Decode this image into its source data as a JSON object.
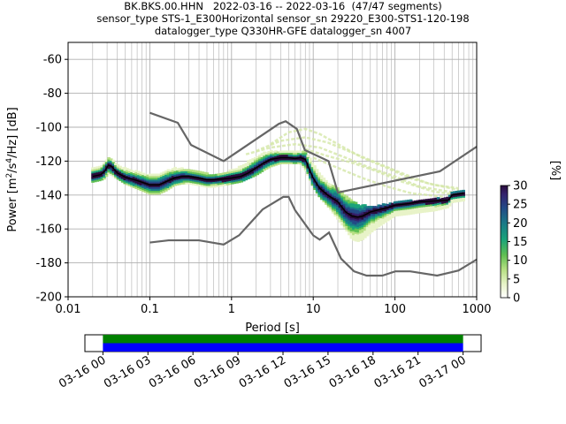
{
  "header": {
    "line1": "BK.BKS.00.HHN   2022-03-16 -- 2022-03-16  (47/47 segments)",
    "line2": "sensor_type STS-1_E300Horizontal sensor_sn 29220_E300-STS1-120-198",
    "line3": "datalogger_type Q330HR-GFE datalogger_sn 4007"
  },
  "chart_data": [
    {
      "type": "heatmap",
      "title": "BK.BKS.00.HHN   2022-03-16 -- 2022-03-16  (47/47 segments)",
      "xlabel": "Period [s]",
      "ylabel_parts": [
        "Power [",
        "m",
        "2",
        "/",
        "s",
        "4",
        "/Hz] [dB]"
      ],
      "x_scale": "log",
      "xlim": [
        0.01,
        1000
      ],
      "ylim": [
        -200,
        -50
      ],
      "x_ticks": [
        {
          "v": 0.01,
          "label": "0.01"
        },
        {
          "v": 0.1,
          "label": "0.1"
        },
        {
          "v": 1,
          "label": "1"
        },
        {
          "v": 10,
          "label": "10"
        },
        {
          "v": 100,
          "label": "100"
        },
        {
          "v": 1000,
          "label": "1000"
        }
      ],
      "y_ticks": [
        -60,
        -80,
        -100,
        -120,
        -140,
        -160,
        -180,
        -200
      ],
      "grid": true,
      "high_noise_model": [
        [
          0.1,
          -91.5
        ],
        [
          0.22,
          -97.4
        ],
        [
          0.32,
          -110.5
        ],
        [
          0.8,
          -120
        ],
        [
          3.8,
          -98
        ],
        [
          4.6,
          -96.5
        ],
        [
          6.3,
          -101
        ],
        [
          7.9,
          -113.5
        ],
        [
          15.4,
          -120
        ],
        [
          20,
          -138.5
        ],
        [
          354.8,
          -126
        ],
        [
          1000,
          -111.5
        ]
      ],
      "low_noise_model": [
        [
          0.1,
          -168
        ],
        [
          0.17,
          -166.7
        ],
        [
          0.4,
          -166.7
        ],
        [
          0.8,
          -169.2
        ],
        [
          1.24,
          -163.7
        ],
        [
          2.4,
          -148.5
        ],
        [
          4.3,
          -141.1
        ],
        [
          5,
          -141.1
        ],
        [
          6,
          -149
        ],
        [
          10,
          -163.8
        ],
        [
          12,
          -166.3
        ],
        [
          15.6,
          -162.1
        ],
        [
          21.9,
          -177.5
        ],
        [
          31.6,
          -185
        ],
        [
          45,
          -187.5
        ],
        [
          70,
          -187.5
        ],
        [
          101,
          -185
        ],
        [
          154,
          -185
        ],
        [
          328,
          -187.5
        ],
        [
          600,
          -184.5
        ],
        [
          1000,
          -178
        ]
      ],
      "mode_line": [
        [
          0.02,
          -129
        ],
        [
          0.025,
          -128
        ],
        [
          0.028,
          -126
        ],
        [
          0.031,
          -122.5
        ],
        [
          0.034,
          -123
        ],
        [
          0.04,
          -127
        ],
        [
          0.05,
          -129.5
        ],
        [
          0.07,
          -131.5
        ],
        [
          0.1,
          -134
        ],
        [
          0.13,
          -134
        ],
        [
          0.16,
          -132
        ],
        [
          0.2,
          -130
        ],
        [
          0.25,
          -129
        ],
        [
          0.3,
          -129
        ],
        [
          0.4,
          -130
        ],
        [
          0.5,
          -131
        ],
        [
          0.6,
          -131
        ],
        [
          0.8,
          -130.5
        ],
        [
          1,
          -130
        ],
        [
          1.3,
          -129
        ],
        [
          1.6,
          -127
        ],
        [
          2,
          -124
        ],
        [
          2.5,
          -121
        ],
        [
          3,
          -119
        ],
        [
          4,
          -118
        ],
        [
          5,
          -118
        ],
        [
          6,
          -118.5
        ],
        [
          7,
          -118
        ],
        [
          8,
          -119
        ],
        [
          9,
          -125
        ],
        [
          10,
          -130
        ],
        [
          12,
          -136
        ],
        [
          15,
          -140
        ],
        [
          20,
          -144
        ],
        [
          25,
          -150
        ],
        [
          30,
          -152.5
        ],
        [
          35,
          -153
        ],
        [
          40,
          -152.5
        ],
        [
          50,
          -150
        ],
        [
          60,
          -149
        ],
        [
          80,
          -147.5
        ],
        [
          100,
          -146
        ],
        [
          150,
          -145
        ],
        [
          200,
          -144
        ],
        [
          300,
          -143.5
        ],
        [
          450,
          -143
        ],
        [
          500,
          -140
        ],
        [
          700,
          -139
        ]
      ],
      "psd_band": [
        [
          0.02,
          -132,
          -124
        ],
        [
          0.025,
          -131,
          -123
        ],
        [
          0.028,
          -130,
          -120
        ],
        [
          0.031,
          -127,
          -118
        ],
        [
          0.034,
          -128,
          -118
        ],
        [
          0.04,
          -130,
          -122
        ],
        [
          0.05,
          -133,
          -124
        ],
        [
          0.07,
          -136,
          -126
        ],
        [
          0.1,
          -139,
          -128
        ],
        [
          0.13,
          -139,
          -127
        ],
        [
          0.16,
          -137,
          -125
        ],
        [
          0.2,
          -134,
          -124
        ],
        [
          0.25,
          -133,
          -124
        ],
        [
          0.3,
          -133,
          -125
        ],
        [
          0.4,
          -134,
          -126
        ],
        [
          0.5,
          -135,
          -127
        ],
        [
          0.6,
          -135,
          -128
        ],
        [
          0.8,
          -134,
          -127
        ],
        [
          1,
          -133,
          -125
        ],
        [
          1.3,
          -132,
          -123
        ],
        [
          1.6,
          -130,
          -120
        ],
        [
          2,
          -128,
          -117
        ],
        [
          2.5,
          -125,
          -115
        ],
        [
          3,
          -123,
          -114
        ],
        [
          4,
          -121,
          -114
        ],
        [
          5,
          -121,
          -114
        ],
        [
          6,
          -121,
          -114
        ],
        [
          7,
          -121,
          -114
        ],
        [
          8,
          -125,
          -114
        ],
        [
          9,
          -130,
          -118
        ],
        [
          10,
          -135,
          -122
        ],
        [
          12,
          -141,
          -127
        ],
        [
          15,
          -146,
          -132
        ],
        [
          20,
          -154,
          -136
        ],
        [
          25,
          -160,
          -140
        ],
        [
          30,
          -166,
          -143
        ],
        [
          35,
          -167,
          -145
        ],
        [
          40,
          -166,
          -146
        ],
        [
          50,
          -162,
          -146
        ],
        [
          60,
          -159,
          -146
        ],
        [
          80,
          -155,
          -145
        ],
        [
          100,
          -152,
          -144
        ],
        [
          150,
          -151,
          -143
        ],
        [
          200,
          -150,
          -143
        ],
        [
          300,
          -149,
          -142
        ],
        [
          450,
          -147,
          -141
        ],
        [
          500,
          -144,
          -138
        ],
        [
          700,
          -143,
          -137
        ]
      ],
      "faint_traces": [
        [
          [
            3,
            -110
          ],
          [
            5,
            -103
          ],
          [
            8,
            -101
          ],
          [
            12,
            -104
          ],
          [
            20,
            -110
          ],
          [
            40,
            -118
          ],
          [
            80,
            -124
          ],
          [
            150,
            -130
          ],
          [
            300,
            -134
          ],
          [
            600,
            -136
          ]
        ],
        [
          [
            2,
            -114
          ],
          [
            4,
            -108
          ],
          [
            8,
            -106
          ],
          [
            15,
            -109
          ],
          [
            30,
            -115
          ],
          [
            60,
            -121
          ],
          [
            120,
            -127
          ],
          [
            250,
            -133
          ],
          [
            600,
            -137
          ]
        ],
        [
          [
            1.5,
            -116
          ],
          [
            3,
            -112
          ],
          [
            6,
            -110
          ],
          [
            12,
            -112
          ],
          [
            25,
            -118
          ],
          [
            50,
            -124
          ],
          [
            100,
            -129
          ],
          [
            200,
            -135
          ],
          [
            600,
            -139
          ]
        ],
        [
          [
            8,
            -113
          ],
          [
            15,
            -117
          ],
          [
            30,
            -121
          ],
          [
            60,
            -126
          ],
          [
            120,
            -132
          ],
          [
            300,
            -138
          ],
          [
            600,
            -140
          ]
        ],
        [
          [
            10,
            -118
          ],
          [
            20,
            -124
          ],
          [
            40,
            -130
          ],
          [
            80,
            -135
          ],
          [
            160,
            -139
          ],
          [
            400,
            -141
          ]
        ]
      ],
      "colorbar": {
        "label": "[%]",
        "min": 0,
        "max": 30,
        "ticks": [
          0,
          5,
          10,
          15,
          20,
          25,
          30
        ]
      }
    },
    {
      "type": "timeline",
      "tick_labels": [
        "03-16 00",
        "03-16 03",
        "03-16 06",
        "03-16 09",
        "03-16 12",
        "03-16 15",
        "03-16 18",
        "03-16 21",
        "03-17 00"
      ],
      "tick_hours": [
        0,
        3,
        6,
        9,
        12,
        15,
        18,
        21,
        24
      ],
      "range_hours": [
        -1.2,
        25.2
      ],
      "coverage": [
        {
          "start_h": 0,
          "end_h": 24
        }
      ],
      "colors": {
        "upper": "#008000",
        "lower": "#0000ff"
      }
    }
  ]
}
